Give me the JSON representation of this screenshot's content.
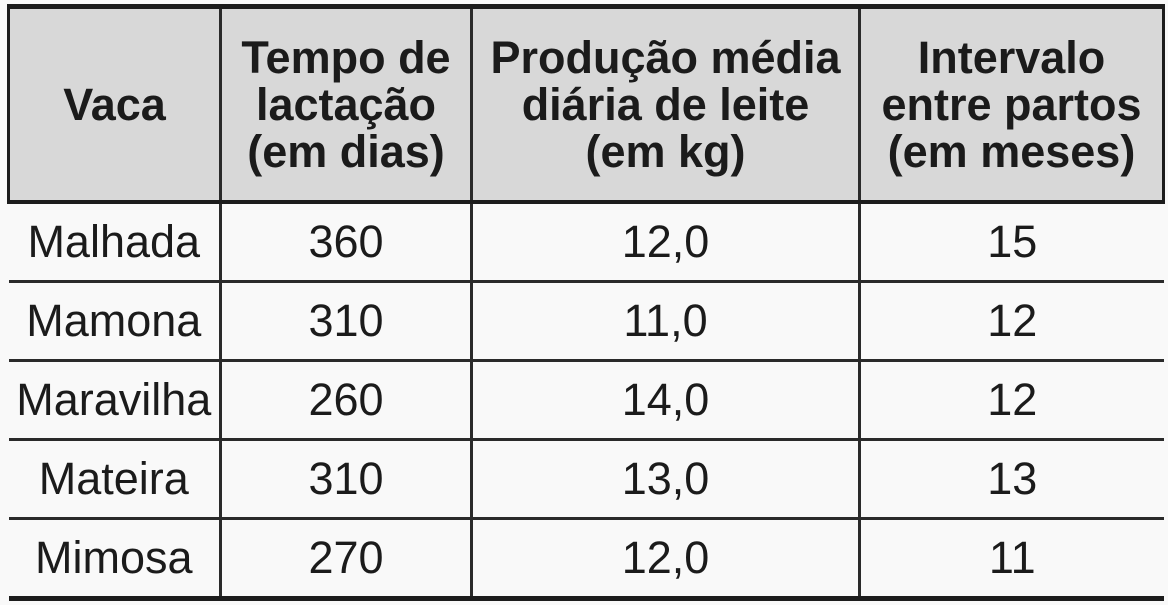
{
  "table": {
    "header": {
      "vaca": "Vaca",
      "tempo": "Tempo de\nlactação\n(em dias)",
      "producao": "Produção média\ndiária de leite\n(em kg)",
      "intervalo": "Intervalo\nentre partos\n(em meses)"
    },
    "rows": [
      {
        "vaca": "Malhada",
        "tempo": "360",
        "producao": "12,0",
        "intervalo": "15"
      },
      {
        "vaca": "Mamona",
        "tempo": "310",
        "producao": "11,0",
        "intervalo": "12"
      },
      {
        "vaca": "Maravilha",
        "tempo": "260",
        "producao": "14,0",
        "intervalo": "12"
      },
      {
        "vaca": "Mateira",
        "tempo": "310",
        "producao": "13,0",
        "intervalo": "13"
      },
      {
        "vaca": "Mimosa",
        "tempo": "270",
        "producao": "12,0",
        "intervalo": "11"
      }
    ],
    "colors": {
      "header_fill": "#d8d8d8",
      "row_fill": "#f9f9f9",
      "border_dark": "#1c1c1c",
      "border_inner": "#2a2a2a",
      "text": "#1b1b1b"
    }
  },
  "chart_data": {
    "type": "table",
    "columns": [
      "Vaca",
      "Tempo de lactação (em dias)",
      "Produção média diária de leite (em kg)",
      "Intervalo entre partos (em meses)"
    ],
    "rows": [
      [
        "Malhada",
        360,
        12.0,
        15
      ],
      [
        "Mamona",
        310,
        11.0,
        12
      ],
      [
        "Maravilha",
        260,
        14.0,
        12
      ],
      [
        "Mateira",
        310,
        13.0,
        13
      ],
      [
        "Mimosa",
        270,
        12.0,
        11
      ]
    ]
  }
}
